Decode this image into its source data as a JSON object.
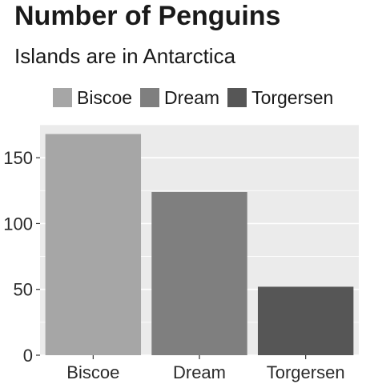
{
  "chart_data": {
    "type": "bar",
    "title": "Number of Penguins",
    "subtitle": "Islands are in Antarctica",
    "categories": [
      "Biscoe",
      "Dream",
      "Torgersen"
    ],
    "values": [
      168,
      124,
      52
    ],
    "colors": [
      "#a6a6a6",
      "#7f7f7f",
      "#565656"
    ],
    "legend": {
      "position": "top",
      "entries": [
        "Biscoe",
        "Dream",
        "Torgersen"
      ]
    },
    "xlabel": "",
    "ylabel": "",
    "ylim": [
      0,
      175
    ],
    "yticks": [
      0,
      50,
      100,
      150
    ],
    "grid": true,
    "panel_background": "#ebebeb",
    "gridline_color": "#ffffff"
  }
}
